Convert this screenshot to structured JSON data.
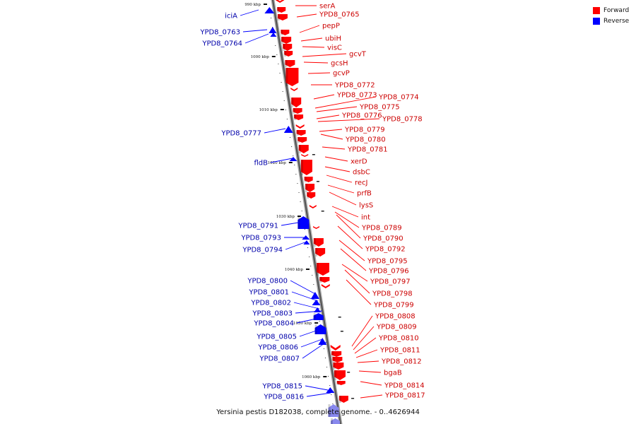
{
  "legend": {
    "forward_label": "Forward",
    "reverse_label": "Reverse",
    "forward_color": "#ff0000",
    "reverse_color": "#0000ff"
  },
  "caption": "Yersinia pestis D182038, complete genome. - 0..4626944",
  "scale": {
    "unit": "kbp",
    "ticks": [
      "990 kbp",
      "1000 kbp",
      "1010 kbp",
      "1020 kbp",
      "1030 kbp",
      "1040 kbp",
      "1050 kbp",
      "1060 kbp"
    ]
  },
  "forward_genes": [
    "serA",
    "YPD8_0765",
    "pepP",
    "ubiH",
    "visC",
    "gcvT",
    "gcsH",
    "gcvP",
    "YPD8_0772",
    "YPD8_0773",
    "YPD8_0774",
    "YPD8_0775",
    "YPD8_0776",
    "YPD8_0778",
    "YPD8_0779",
    "YPD8_0780",
    "YPD8_0781",
    "xerD",
    "dsbC",
    "recJ",
    "prfB",
    "lysS",
    "int",
    "YPD8_0789",
    "YPD8_0790",
    "YPD8_0792",
    "YPD8_0795",
    "YPD8_0796",
    "YPD8_0797",
    "YPD8_0798",
    "YPD8_0799",
    "YPD8_0808",
    "YPD8_0809",
    "YPD8_0810",
    "YPD8_0811",
    "YPD8_0812",
    "bgaB",
    "YPD8_0814",
    "YPD8_0817"
  ],
  "reverse_genes": [
    "iciA",
    "YPD8_0763",
    "YPD8_0764",
    "YPD8_0777",
    "fldB",
    "YPD8_0791",
    "YPD8_0793",
    "YPD8_0794",
    "YPD8_0800",
    "YPD8_0801",
    "YPD8_0802",
    "YPD8_0803",
    "YPD8_0804",
    "YPD8_0805",
    "YPD8_0806",
    "YPD8_0807",
    "YPD8_0815",
    "YPD8_0816"
  ]
}
